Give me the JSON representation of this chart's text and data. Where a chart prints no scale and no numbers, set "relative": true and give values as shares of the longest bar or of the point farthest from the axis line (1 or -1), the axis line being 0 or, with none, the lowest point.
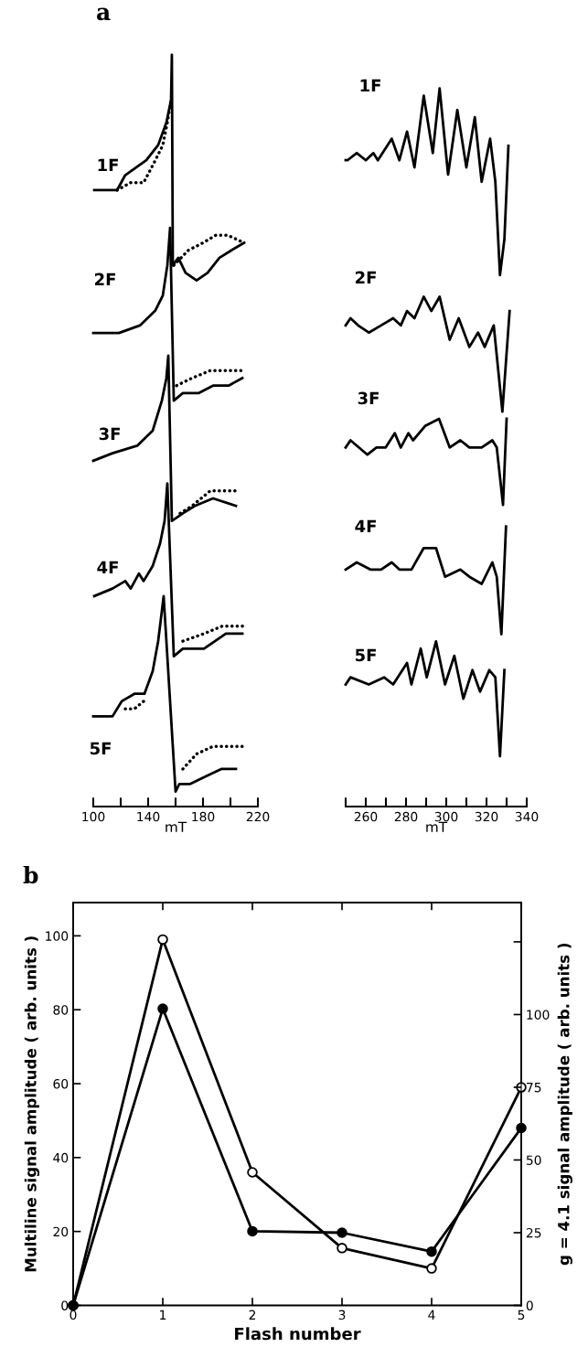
{
  "chart_data": [
    {
      "type": "line",
      "relative": true,
      "annotations": [
        "a"
      ],
      "xlabel": "mT",
      "xlim": [
        100,
        220
      ],
      "xticks": [
        100,
        {
          "value": 120,
          "label": null
        },
        140,
        {
          "value": 160,
          "label": null
        },
        180,
        {
          "value": 200,
          "label": null
        },
        220
      ],
      "series": [
        {
          "name": "1F",
          "color": "#000000",
          "line_style": "solid",
          "x": [
            100.7,
            117.3,
            123.3,
            138.7,
            147.3,
            153.3,
            156.7,
            157.3,
            158,
            162,
            167.3,
            175.3,
            183.3,
            192,
            200.7,
            210
          ],
          "values": [
            0.82,
            0.82,
            0.84,
            0.86,
            0.88,
            0.91,
            0.94,
            1.0,
            0.72,
            0.73,
            0.71,
            0.7,
            0.71,
            0.73,
            0.74,
            0.75
          ]
        },
        {
          "color": "#000000",
          "line_style": "dotted",
          "x": [
            117.3,
            127.3,
            136.7,
            145.3,
            150.7,
            154,
            156.7,
            157.5,
            158.7,
            169.3,
            180,
            189.3,
            198,
            210
          ],
          "values": [
            0.82,
            0.83,
            0.83,
            0.86,
            0.88,
            0.91,
            0.94,
            null,
            0.72,
            0.74,
            0.75,
            0.76,
            0.76,
            0.75
          ]
        },
        {
          "name": "2F",
          "color": "#000000",
          "line_style": "solid",
          "x": [
            100,
            118.7,
            134,
            145.3,
            150.7,
            154,
            156,
            158.7,
            165.3,
            176.7,
            187.3,
            198.7,
            208.7
          ],
          "values": [
            0.63,
            0.63,
            0.64,
            0.66,
            0.68,
            0.72,
            0.77,
            0.54,
            0.55,
            0.55,
            0.56,
            0.56,
            0.57
          ]
        },
        {
          "color": "#000000",
          "line_style": "dotted",
          "x": [
            160.7,
            172,
            185.3,
            196.7,
            208.7
          ],
          "values": [
            0.56,
            0.57,
            0.58,
            0.58,
            0.58
          ]
        },
        {
          "name": "3F",
          "color": "#000000",
          "line_style": "solid",
          "x": [
            100,
            114,
            132,
            143.3,
            150,
            153.3,
            154.7,
            157.3,
            165.3,
            174,
            187.3,
            204
          ],
          "values": [
            0.46,
            0.47,
            0.48,
            0.5,
            0.54,
            0.57,
            0.6,
            0.38,
            0.39,
            0.4,
            0.41,
            0.4
          ]
        },
        {
          "color": "#000000",
          "line_style": "dotted",
          "x": [
            163.3,
            172,
            185.3,
            196.7,
            205.3
          ],
          "values": [
            0.39,
            0.4,
            0.42,
            0.42,
            0.42
          ]
        },
        {
          "name": "4F",
          "color": "#000000",
          "line_style": "solid",
          "x": [
            100.7,
            114,
            123.3,
            127.3,
            133.3,
            136.7,
            143.3,
            148.7,
            152,
            154,
            158.7,
            165.3,
            180.7,
            196.7,
            208.7
          ],
          "values": [
            0.28,
            0.29,
            0.3,
            0.29,
            0.31,
            0.3,
            0.32,
            0.35,
            0.38,
            0.43,
            0.2,
            0.21,
            0.21,
            0.23,
            0.23
          ]
        },
        {
          "color": "#000000",
          "line_style": "dotted",
          "x": [
            165.3,
            180.7,
            194,
            210
          ],
          "values": [
            0.22,
            0.23,
            0.24,
            0.24
          ]
        },
        {
          "name": "5F",
          "color": "#000000",
          "line_style": "solid",
          "x": [
            100,
            114,
            120.7,
            130,
            137.3,
            143.3,
            147.3,
            150,
            151.3,
            160,
            162.7,
            170.7,
            182,
            193.3,
            204
          ],
          "values": [
            0.12,
            0.12,
            0.14,
            0.15,
            0.15,
            0.18,
            0.22,
            0.26,
            0.28,
            0.02,
            0.03,
            0.03,
            0.04,
            0.05,
            0.05
          ]
        },
        {
          "color": "#000000",
          "line_style": "dotted",
          "x": [
            123.3,
            130,
            136.7,
            150,
            165.3,
            175.3,
            187.3,
            198.7,
            208.7
          ],
          "values": [
            0.13,
            0.13,
            0.14,
            null,
            0.05,
            0.07,
            0.08,
            0.08,
            0.08
          ]
        }
      ]
    },
    {
      "type": "line",
      "relative": true,
      "xlabel": "mT",
      "xlim": [
        250,
        340
      ],
      "xticks": [
        {
          "value": 250,
          "label": null
        },
        260,
        {
          "value": 270,
          "label": null
        },
        280,
        {
          "value": 290,
          "label": null
        },
        300,
        {
          "value": 310,
          "label": null
        },
        320,
        {
          "value": 330,
          "label": null
        },
        340
      ],
      "series": [
        {
          "name": "1F",
          "color": "#000000",
          "line_style": "solid",
          "x": [
            250,
            250.9,
            255.5,
            260,
            263.8,
            266,
            272.9,
            276.7,
            280.5,
            284.2,
            288.8,
            293.3,
            296.7,
            300.9,
            305.5,
            310,
            314.2,
            317.6,
            321.8,
            324.4,
            326.7,
            328.9,
            330.9
          ],
          "values": [
            0.9,
            0.9,
            0.91,
            0.9,
            0.91,
            0.9,
            0.93,
            0.9,
            0.94,
            0.89,
            0.99,
            0.91,
            1.0,
            0.88,
            0.97,
            0.89,
            0.96,
            0.87,
            0.93,
            0.87,
            0.74,
            0.79,
            0.92
          ]
        },
        {
          "name": "2F",
          "color": "#000000",
          "line_style": "solid",
          "x": [
            250,
            252.4,
            256.2,
            261.5,
            267.6,
            273.6,
            277.4,
            280.5,
            284.2,
            288.8,
            292.6,
            296.7,
            301.7,
            306.2,
            311.5,
            315.8,
            319.1,
            323.6,
            327.9,
            331.5
          ],
          "values": [
            0.67,
            0.68,
            0.67,
            0.66,
            0.67,
            0.68,
            0.67,
            0.69,
            0.68,
            0.71,
            0.69,
            0.71,
            0.65,
            0.68,
            0.64,
            0.66,
            0.64,
            0.67,
            0.55,
            0.69
          ]
        },
        {
          "name": "3F",
          "color": "#000000",
          "line_style": "solid",
          "x": [
            250,
            252.4,
            260.8,
            265.3,
            269.9,
            274.4,
            277.4,
            281.2,
            283.5,
            289.5,
            296.4,
            301.7,
            307,
            311.5,
            317.6,
            322.9,
            325.1,
            328.2,
            330
          ],
          "values": [
            0.5,
            0.51,
            0.49,
            0.5,
            0.5,
            0.52,
            0.5,
            0.52,
            0.51,
            0.53,
            0.54,
            0.5,
            0.51,
            0.5,
            0.5,
            0.51,
            0.5,
            0.42,
            0.54
          ]
        },
        {
          "name": "4F",
          "color": "#000000",
          "line_style": "solid",
          "x": [
            250,
            255.5,
            262.3,
            267.6,
            272.9,
            276.7,
            282.7,
            288.8,
            294.9,
            299.4,
            307,
            311.5,
            317.6,
            322.9,
            325.1,
            327.4,
            329.7
          ],
          "values": [
            0.33,
            0.34,
            0.33,
            0.33,
            0.34,
            0.33,
            0.33,
            0.36,
            0.36,
            0.32,
            0.33,
            0.32,
            0.31,
            0.34,
            0.32,
            0.24,
            0.39
          ]
        },
        {
          "name": "5F",
          "color": "#000000",
          "line_style": "solid",
          "x": [
            250,
            252.4,
            261.5,
            269.1,
            273.6,
            280.5,
            282.7,
            287.3,
            290.3,
            294.9,
            299.4,
            304,
            308.5,
            313,
            316.8,
            321.4,
            324.4,
            326.7,
            328.9
          ],
          "values": [
            0.17,
            0.18,
            0.17,
            0.18,
            0.17,
            0.2,
            0.17,
            0.22,
            0.18,
            0.23,
            0.17,
            0.21,
            0.15,
            0.19,
            0.16,
            0.19,
            0.18,
            0.07,
            0.19
          ]
        }
      ]
    },
    {
      "type": "line",
      "annotations": [
        "b"
      ],
      "xlabel": "Flash number",
      "ylabel": "Multiline signal amplitude ( arb. units )",
      "y2label": "g = 4.1 signal amplitude ( arb. units )",
      "x": [
        0,
        1,
        2,
        3,
        4,
        5
      ],
      "xlim": [
        0,
        5
      ],
      "xticks": [
        0,
        1,
        2,
        3,
        4,
        5
      ],
      "ylim": [
        0,
        109
      ],
      "yticks": [
        0,
        20,
        40,
        60,
        80,
        100
      ],
      "y2lim": [
        0,
        138.5
      ],
      "y2ticks": [
        0,
        25,
        50,
        75,
        100,
        {
          "value": 125,
          "label": null
        }
      ],
      "marker": "circle",
      "line_style": "solid",
      "series": [
        {
          "color": "#000000",
          "axis": "y",
          "values": [
            0,
            99,
            36,
            15.5,
            10,
            59
          ]
        },
        {
          "color": "#000000",
          "axis": "y2",
          "values": [
            0,
            102,
            25.5,
            25,
            18.5,
            61
          ]
        }
      ]
    }
  ]
}
